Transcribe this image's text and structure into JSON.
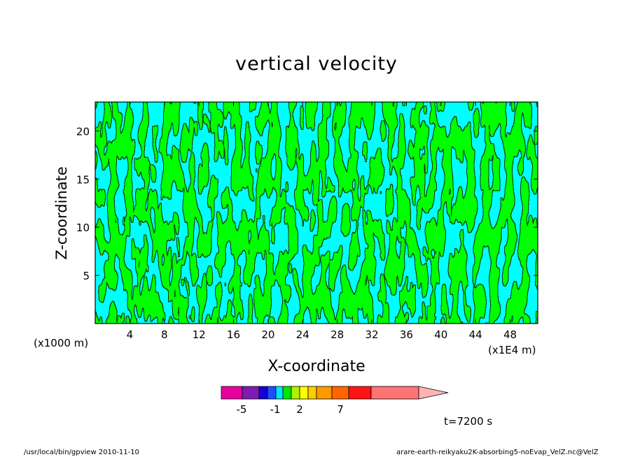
{
  "chart_data": {
    "type": "contour",
    "title": "vertical velocity",
    "xlabel": "X-coordinate",
    "ylabel": "Z-coordinate",
    "x_unit": "(x1E4 m)",
    "y_unit": "(x1000 m)",
    "xlim": [
      0,
      51.2
    ],
    "ylim": [
      0,
      23
    ],
    "x_ticks": [
      4,
      8,
      12,
      16,
      20,
      24,
      28,
      32,
      36,
      40,
      44,
      48
    ],
    "y_ticks": [
      5,
      10,
      15,
      20
    ],
    "colorbar": {
      "colors": [
        "#e6009e",
        "#7f1ab4",
        "#1400d4",
        "#1f4cff",
        "#00e5ff",
        "#00e600",
        "#b3f000",
        "#ffff00",
        "#ffcc00",
        "#ff9900",
        "#ff6600",
        "#ff1414",
        "#ff7373",
        "#ffb3b3"
      ],
      "tick_labels": [
        "-5",
        "-1",
        "2",
        "7"
      ]
    },
    "dominant_fill_colors": [
      "#00ffff",
      "#00ff00"
    ],
    "time_label": "t=7200 s"
  },
  "footer": {
    "left": "/usr/local/bin/gpview  2010-11-10",
    "right": "arare-earth-reikyaku2K-absorbing5-noEvap_VelZ.nc@VelZ"
  }
}
